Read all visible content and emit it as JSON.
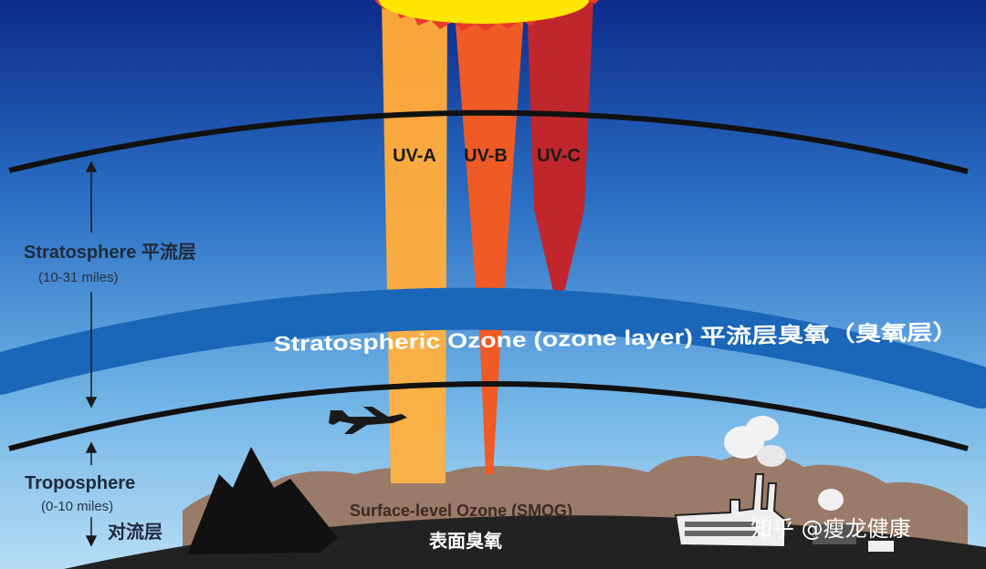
{
  "uv": {
    "a_label": "UV-A",
    "b_label": "UV-B",
    "c_label": "UV-C"
  },
  "stratosphere": {
    "label": "Stratosphere 平流层",
    "range": "(10-31 miles)"
  },
  "ozone_layer": {
    "label": "Stratospheric Ozone (ozone layer) 平流层臭氧（臭氧层）"
  },
  "troposphere": {
    "label": "Troposphere",
    "range": "(0-10 miles)",
    "cn_label": "对流层"
  },
  "surface": {
    "smog_label": "Surface-level Ozone (SMOG)",
    "cn_label": "表面臭氧"
  },
  "watermark": {
    "text": "知乎 @瘦龙健康"
  },
  "colors": {
    "sky_top": "#0b2a8a",
    "sky_bottom": "#9fd0ef",
    "uva": "#f7a43a",
    "uvb": "#f05a24",
    "uvc": "#c0262c",
    "ozone_band": "#1a66b8",
    "sun": "#ffe600",
    "earth": "#222222",
    "smog": "#9a7a68"
  }
}
